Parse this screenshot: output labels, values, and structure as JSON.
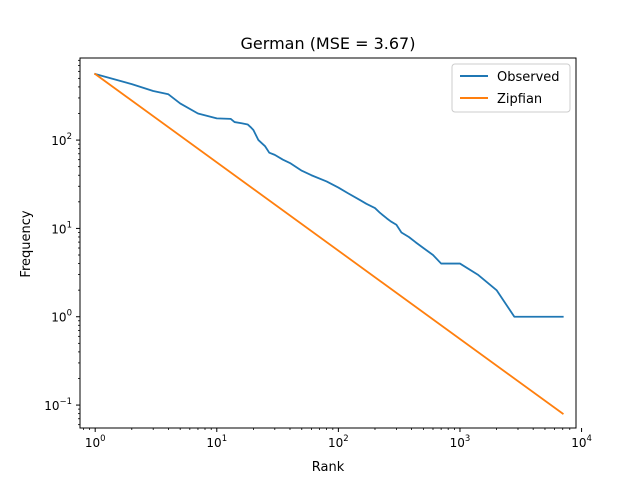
{
  "chart_data": {
    "type": "line",
    "title": "German (MSE = 3.67)",
    "xlabel": "Rank",
    "ylabel": "Frequency",
    "xscale": "log",
    "yscale": "log",
    "xlim": [
      0.75,
      9000
    ],
    "ylim": [
      0.055,
      850
    ],
    "grid": false,
    "legend": "top-right",
    "x_ticks": [
      {
        "value": 1,
        "mantissa": "10",
        "exp": "0"
      },
      {
        "value": 10,
        "mantissa": "10",
        "exp": "1"
      },
      {
        "value": 100,
        "mantissa": "10",
        "exp": "2"
      },
      {
        "value": 1000,
        "mantissa": "10",
        "exp": "3"
      },
      {
        "value": 10000,
        "mantissa": "10",
        "exp": "4"
      }
    ],
    "y_ticks": [
      {
        "value": 0.1,
        "mantissa": "10",
        "exp": "−1"
      },
      {
        "value": 1,
        "mantissa": "10",
        "exp": "0"
      },
      {
        "value": 10,
        "mantissa": "10",
        "exp": "1"
      },
      {
        "value": 100,
        "mantissa": "10",
        "exp": "2"
      }
    ],
    "series": [
      {
        "name": "Observed",
        "color": "#1f77b4",
        "x": [
          1,
          2,
          3,
          4,
          5,
          7,
          10,
          13,
          14,
          16,
          18,
          19,
          20,
          22,
          25,
          27,
          30,
          35,
          40,
          50,
          60,
          80,
          100,
          120,
          150,
          170,
          200,
          220,
          250,
          270,
          300,
          330,
          380,
          430,
          500,
          600,
          700,
          1000,
          1400,
          2000,
          2800,
          7000
        ],
        "y": [
          560,
          430,
          360,
          330,
          260,
          200,
          176,
          174,
          160,
          155,
          150,
          140,
          130,
          100,
          85,
          72,
          68,
          60,
          55,
          45,
          40,
          34,
          29,
          25,
          21,
          19,
          17,
          15,
          13,
          12,
          11,
          9,
          8,
          7,
          6,
          5,
          4,
          4,
          3,
          2,
          1,
          1
        ]
      },
      {
        "name": "Zipfian",
        "color": "#ff7f0e",
        "x": [
          1,
          7000
        ],
        "y": [
          560,
          0.08
        ]
      }
    ]
  }
}
